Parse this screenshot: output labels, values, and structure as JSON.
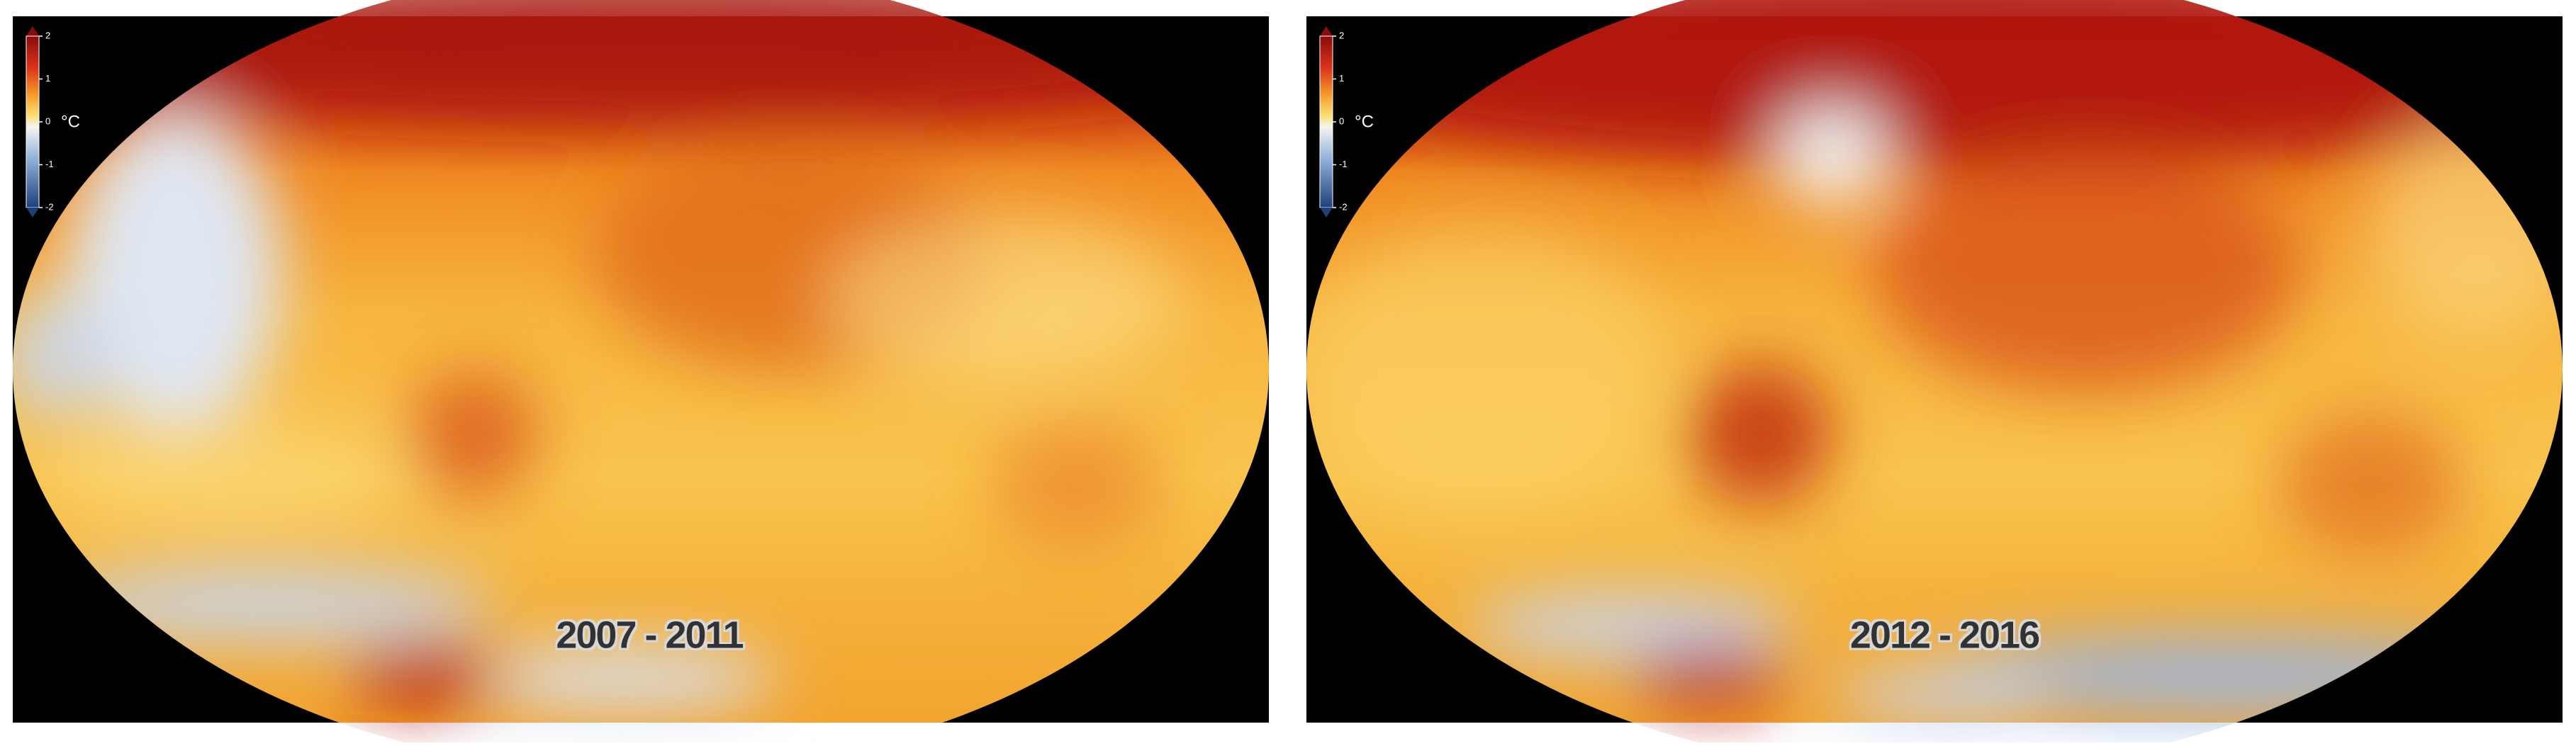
{
  "panels": [
    {
      "period": "2007 - 2011",
      "colorbar": {
        "ticks": [
          2,
          1,
          0,
          -1,
          -2
        ],
        "unit": "°C"
      }
    },
    {
      "period": "2012 - 2016",
      "colorbar": {
        "ticks": [
          2,
          1,
          0,
          -1,
          -2
        ],
        "unit": "°C"
      }
    }
  ]
}
